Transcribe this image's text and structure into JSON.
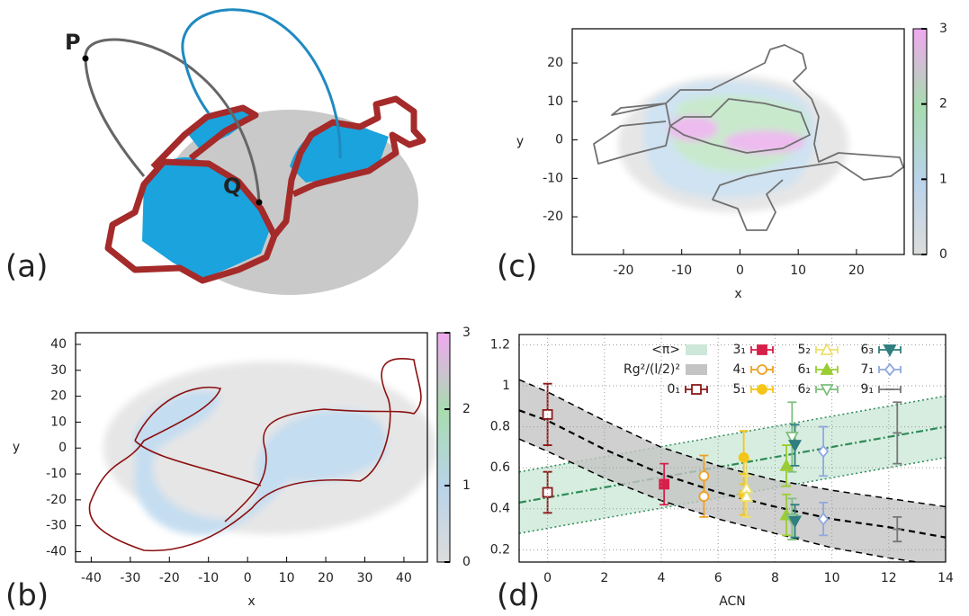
{
  "panel_labels": [
    "(a)",
    "(b)",
    "(c)",
    "(d)"
  ],
  "illustration": {
    "labels": [
      "P",
      "Q"
    ]
  },
  "chart_data": [
    {
      "type": "density",
      "xlabel": "x",
      "ylabel": "y",
      "xlim": [
        -44,
        46
      ],
      "ylim": [
        -44,
        44.5
      ],
      "xticks": [
        -40,
        -30,
        -20,
        -10,
        0,
        10,
        20,
        30,
        40
      ],
      "yticks": [
        -40,
        -30,
        -20,
        -10,
        0,
        10,
        20,
        30,
        40
      ],
      "colorbar": {
        "lim": [
          0,
          3
        ],
        "ticks": [
          0,
          1,
          2,
          3
        ]
      }
    },
    {
      "type": "density",
      "xlabel": "x",
      "ylabel": "y",
      "xlim": [
        -28.8,
        28.2
      ],
      "ylim": [
        -29.8,
        28.9
      ],
      "xticks": [
        -20,
        -10,
        0,
        10,
        20
      ],
      "yticks": [
        -20,
        -10,
        0,
        10,
        20
      ],
      "colorbar": {
        "lim": [
          0,
          3
        ],
        "ticks": [
          0,
          1,
          2,
          3
        ]
      }
    },
    {
      "type": "errorbar",
      "xlabel": "ACN",
      "xlim": [
        -1,
        14
      ],
      "ylim": [
        0.14,
        1.25
      ],
      "xticks": [
        0,
        2,
        4,
        6,
        8,
        10,
        12,
        14
      ],
      "yticks": [
        0.2,
        0.4,
        0.6,
        0.8,
        1,
        1.2
      ],
      "grid": true,
      "bands": [
        {
          "name": "<π>",
          "color": "#2e8b57",
          "fill": "#cde8d8",
          "line_style": "dashdot",
          "edge_style": "dotted",
          "x": [
            -1,
            14
          ],
          "values": [
            0.43,
            0.8
          ],
          "lower": [
            0.28,
            0.65
          ],
          "upper": [
            0.58,
            0.95
          ]
        },
        {
          "name": "Rg²/(l/2)²",
          "color": "#000000",
          "fill": "#c4c4c4",
          "line_style": "dashed",
          "edge_style": "dashed",
          "x": [
            -1,
            0,
            2,
            4,
            6,
            8,
            10,
            12,
            14
          ],
          "values": [
            0.88,
            0.83,
            0.69,
            0.57,
            0.48,
            0.41,
            0.35,
            0.31,
            0.26
          ],
          "lower": [
            0.74,
            0.68,
            0.55,
            0.44,
            0.35,
            0.28,
            0.21,
            0.16,
            0.12
          ],
          "upper": [
            1.03,
            0.97,
            0.83,
            0.7,
            0.61,
            0.54,
            0.49,
            0.45,
            0.41
          ]
        }
      ],
      "series": [
        {
          "name": "0₁",
          "color": "#8b1a1a",
          "marker": "square",
          "filled": false,
          "x": [
            0,
            0
          ],
          "values": [
            0.86,
            0.48
          ],
          "errors": [
            0.15,
            0.1
          ]
        },
        {
          "name": "3₁",
          "color": "#d6204a",
          "marker": "square",
          "filled": true,
          "x": [
            4.1
          ],
          "values": [
            0.52
          ],
          "errors": [
            0.1
          ]
        },
        {
          "name": "4₁",
          "color": "#f0a020",
          "marker": "circle",
          "filled": false,
          "x": [
            5.5,
            5.5
          ],
          "values": [
            0.56,
            0.46
          ],
          "errors": [
            0.1,
            0.1
          ]
        },
        {
          "name": "5₁",
          "color": "#f5c518",
          "marker": "circle",
          "filled": true,
          "x": [
            6.9,
            6.9
          ],
          "values": [
            0.65,
            0.47
          ],
          "errors": [
            0.13,
            0.1
          ]
        },
        {
          "name": "5₂",
          "color": "#ece070",
          "marker": "triangle-up",
          "filled": false,
          "x": [
            7,
            7
          ],
          "values": [
            0.5,
            0.46
          ],
          "errors": [
            0.14,
            0.1
          ]
        },
        {
          "name": "6₁",
          "color": "#9acd32",
          "marker": "triangle-up",
          "filled": true,
          "x": [
            8.4,
            8.4
          ],
          "values": [
            0.61,
            0.37
          ],
          "errors": [
            0.1,
            0.1
          ]
        },
        {
          "name": "6₂",
          "color": "#7fbf7f",
          "marker": "triangle-down",
          "filled": false,
          "x": [
            8.6,
            8.6
          ],
          "values": [
            0.75,
            0.35
          ],
          "errors": [
            0.17,
            0.1
          ]
        },
        {
          "name": "6₃",
          "color": "#2f7f7f",
          "marker": "triangle-down",
          "filled": true,
          "x": [
            8.7,
            8.7
          ],
          "values": [
            0.71,
            0.34
          ],
          "errors": [
            0.1,
            0.08
          ]
        },
        {
          "name": "7₁",
          "color": "#8fa8e0",
          "marker": "diamond",
          "filled": false,
          "x": [
            9.7,
            9.7
          ],
          "values": [
            0.68,
            0.35
          ],
          "errors": [
            0.12,
            0.08
          ]
        },
        {
          "name": "9₁",
          "color": "#777777",
          "marker": "none",
          "filled": false,
          "x": [
            12.3,
            12.3
          ],
          "values": [
            0.77,
            0.3
          ],
          "errors": [
            0.15,
            0.06
          ]
        }
      ]
    }
  ]
}
